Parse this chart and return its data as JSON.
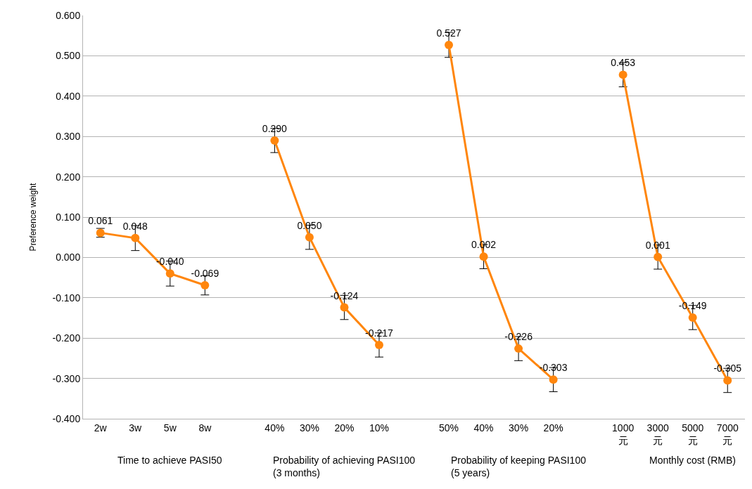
{
  "chart_data": {
    "type": "line",
    "ylabel": "Preference weight",
    "categories": [
      "2w",
      "3w",
      "5w",
      "8w",
      null,
      "40%",
      "30%",
      "20%",
      "10%",
      null,
      "50%",
      "40%",
      "30%",
      "20%",
      null,
      "1000 元",
      "3000 元",
      "5000 元",
      "7000 元"
    ],
    "series": [
      {
        "color": "#ff860d",
        "values": [
          0.061,
          0.048,
          -0.04,
          -0.069,
          null,
          0.29,
          0.05,
          -0.124,
          -0.217,
          null,
          0.527,
          0.002,
          -0.226,
          -0.303,
          null,
          0.453,
          0.001,
          -0.149,
          -0.305
        ],
        "value_labels": [
          "0.061",
          "0.048",
          "-0.040",
          "-0.069",
          null,
          "0.290",
          "0.050",
          "-0.124",
          "-0.217",
          null,
          "0.527",
          "0.002",
          "-0.226",
          "-0.303",
          null,
          "0.453",
          "0.001",
          "-0.149",
          "-0.305"
        ],
        "errors": [
          0.011,
          0.031,
          0.031,
          0.024,
          null,
          0.03,
          0.03,
          0.03,
          0.03,
          null,
          0.031,
          0.03,
          0.03,
          0.03,
          null,
          0.03,
          0.03,
          0.03,
          0.03
        ]
      }
    ],
    "annotations": [
      "Time to achieve PASI50",
      "Probability of achieving PASI100 (3 months)",
      "Probability of keeping PASI100 (5 years)",
      "Monthly cost (RMB)"
    ],
    "ylim": [
      -0.4,
      0.6
    ],
    "yticks": [
      {
        "value": -0.4,
        "label": "-0.400"
      },
      {
        "value": -0.3,
        "label": "-0.300"
      },
      {
        "value": -0.2,
        "label": "-0.200"
      },
      {
        "value": -0.1,
        "label": "-0.100"
      },
      {
        "value": 0,
        "label": "0.000"
      },
      {
        "value": 0.1,
        "label": "0.100"
      },
      {
        "value": 0.2,
        "label": "0.200"
      },
      {
        "value": 0.3,
        "label": "0.300"
      },
      {
        "value": 0.4,
        "label": "0.400"
      },
      {
        "value": 0.5,
        "label": "0.500"
      },
      {
        "value": 0.6,
        "label": "0.600"
      }
    ],
    "grid": "y",
    "marker": "circle",
    "line_style": "solid"
  }
}
